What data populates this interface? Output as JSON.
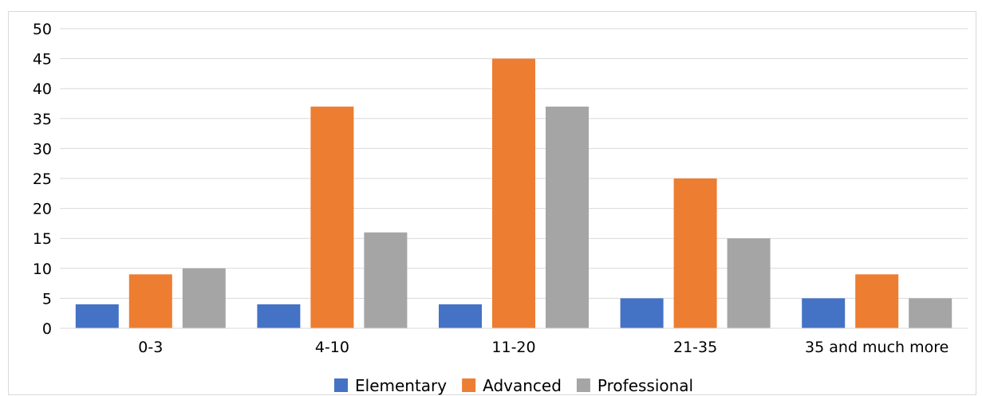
{
  "chart_data": {
    "type": "bar",
    "categories": [
      "0-3",
      "4-10",
      "11-20",
      "21-35",
      "35 and much more"
    ],
    "series": [
      {
        "name": "Elementary",
        "values": [
          4,
          4,
          4,
          5,
          5
        ],
        "color": "#4472c4"
      },
      {
        "name": "Advanced",
        "values": [
          9,
          37,
          45,
          25,
          9
        ],
        "color": "#ed7d31"
      },
      {
        "name": "Professional",
        "values": [
          10,
          16,
          37,
          15,
          5
        ],
        "color": "#a5a5a5"
      }
    ],
    "yticks": [
      "0",
      "5",
      "10",
      "15",
      "20",
      "25",
      "30",
      "35",
      "40",
      "45",
      "50"
    ],
    "ylim": [
      0,
      50
    ],
    "title": "",
    "xlabel": "",
    "ylabel": "",
    "grid": true,
    "legend_position": "bottom",
    "gridline_color": "#d9d9d9"
  }
}
